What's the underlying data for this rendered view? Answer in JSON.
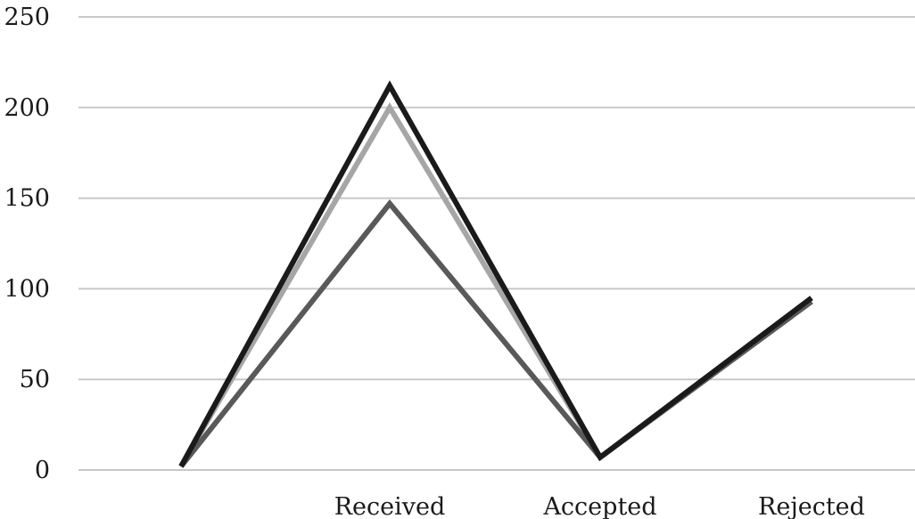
{
  "chart_data": {
    "type": "line",
    "title": "",
    "xlabel": "",
    "ylabel": "",
    "categories": [
      "",
      "Received",
      "Accepted",
      "Rejected"
    ],
    "ylim": [
      0,
      250
    ],
    "yticks": [
      0,
      50,
      100,
      150,
      200,
      250
    ],
    "grid": true,
    "legend": "none",
    "series": [
      {
        "values": [
          2,
          200,
          7,
          93
        ],
        "color": "#a6a6a6"
      },
      {
        "values": [
          2,
          147,
          7,
          93
        ],
        "color": "#595959"
      },
      {
        "values": [
          2,
          212,
          7,
          95
        ],
        "color": "#1a1a1a"
      }
    ]
  }
}
